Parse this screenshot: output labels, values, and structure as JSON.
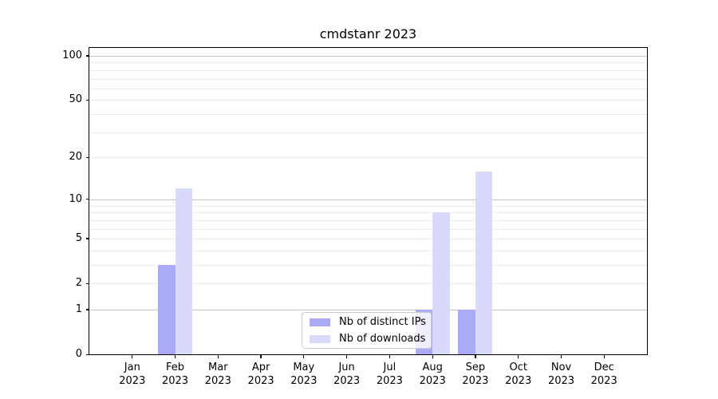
{
  "figure": {
    "title": "cmdstanr 2023"
  },
  "legend": {
    "items": [
      {
        "label": "Nb of distinct IPs",
        "color": "#aaaaf6"
      },
      {
        "label": "Nb of downloads",
        "color": "#d9d9fa"
      }
    ]
  },
  "chart_data": {
    "type": "bar",
    "title": "cmdstanr 2023",
    "categories": [
      "Jan 2023",
      "Feb 2023",
      "Mar 2023",
      "Apr 2023",
      "May 2023",
      "Jun 2023",
      "Jul 2023",
      "Aug 2023",
      "Sep 2023",
      "Oct 2023",
      "Nov 2023",
      "Dec 2023"
    ],
    "series": [
      {
        "name": "Nb of distinct IPs",
        "color": "#aaaaf6",
        "values": [
          0,
          3,
          0,
          0,
          0,
          0,
          0,
          1,
          1,
          0,
          0,
          0
        ]
      },
      {
        "name": "Nb of downloads",
        "color": "#d9d9fa",
        "values": [
          0,
          12,
          0,
          0,
          0,
          0,
          0,
          8,
          16,
          0,
          0,
          0
        ]
      }
    ],
    "xlabel": "",
    "ylabel": "",
    "y_scale": "log10(1+x)",
    "y_ticks": [
      100,
      50,
      20,
      10,
      5,
      2,
      1,
      0
    ],
    "grid": "on",
    "grid_major_values": [
      1,
      10,
      100
    ],
    "grid_minor_values": [
      2,
      3,
      4,
      5,
      6,
      7,
      8,
      9,
      20,
      30,
      40,
      50,
      60,
      70,
      80,
      90
    ],
    "ylim": [
      0,
      113
    ],
    "legend_position": "lower center",
    "colors": {
      "grid_major": "#c2c2c2",
      "grid_minor": "#ececec",
      "axis": "#000000",
      "text": "#000000"
    }
  }
}
